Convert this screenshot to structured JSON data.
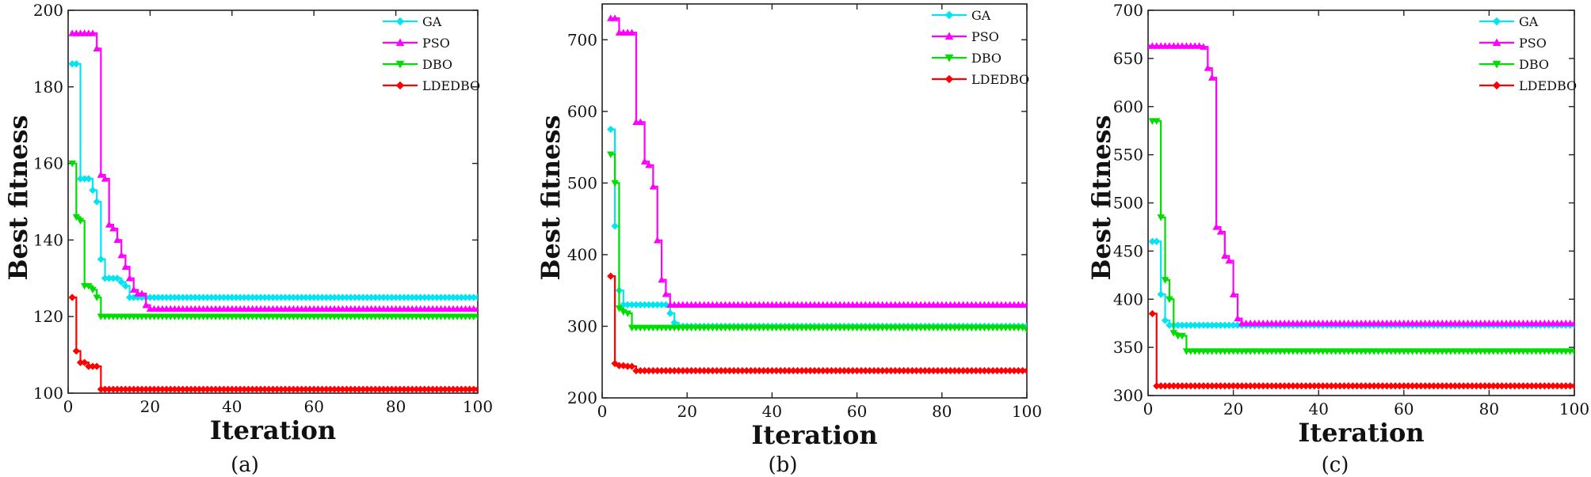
{
  "chart_data": [
    {
      "type": "line",
      "caption": "(a)",
      "xlabel": "Iteration",
      "ylabel": "Best fitness",
      "xlim": [
        0,
        100
      ],
      "ylim": [
        100,
        200
      ],
      "xticks": [
        0,
        20,
        40,
        60,
        80,
        100
      ],
      "yticks": [
        100,
        120,
        140,
        160,
        180,
        200
      ],
      "grid": false,
      "legend_position": "top-right",
      "series": [
        {
          "name": "GA",
          "color": "#00e5f0",
          "marker": "diamond",
          "points": [
            [
              1,
              186
            ],
            [
              2,
              186
            ],
            [
              3,
              156
            ],
            [
              4,
              156
            ],
            [
              5,
              156
            ],
            [
              6,
              153
            ],
            [
              7,
              150
            ],
            [
              8,
              135
            ],
            [
              9,
              130
            ],
            [
              10,
              130
            ],
            [
              11,
              130
            ],
            [
              12,
              130
            ],
            [
              13,
              129
            ],
            [
              14,
              128
            ],
            [
              15,
              125
            ],
            [
              100,
              125
            ]
          ]
        },
        {
          "name": "PSO",
          "color": "#ff00ff",
          "marker": "triangle-up",
          "points": [
            [
              1,
              194
            ],
            [
              5,
              194
            ],
            [
              6,
              194
            ],
            [
              7,
              190
            ],
            [
              8,
              157
            ],
            [
              9,
              156
            ],
            [
              10,
              144
            ],
            [
              11,
              143
            ],
            [
              12,
              140
            ],
            [
              13,
              136
            ],
            [
              14,
              133
            ],
            [
              15,
              130
            ],
            [
              16,
              127
            ],
            [
              17,
              126
            ],
            [
              18,
              126
            ],
            [
              19,
              123
            ],
            [
              20,
              122
            ],
            [
              100,
              122
            ]
          ]
        },
        {
          "name": "DBO",
          "color": "#00dd00",
          "marker": "triangle-down",
          "points": [
            [
              1,
              160
            ],
            [
              2,
              146
            ],
            [
              3,
              145
            ],
            [
              4,
              128
            ],
            [
              5,
              128
            ],
            [
              6,
              127
            ],
            [
              7,
              125
            ],
            [
              8,
              120
            ],
            [
              100,
              120
            ]
          ]
        },
        {
          "name": "LDEDBO",
          "color": "#ff0000",
          "marker": "diamond",
          "points": [
            [
              1,
              125
            ],
            [
              2,
              111
            ],
            [
              3,
              108
            ],
            [
              4,
              108
            ],
            [
              5,
              107
            ],
            [
              6,
              107
            ],
            [
              7,
              107
            ],
            [
              8,
              101
            ],
            [
              100,
              101
            ]
          ]
        }
      ]
    },
    {
      "type": "line",
      "caption": "(b)",
      "xlabel": "Iteration",
      "ylabel": "Best fitness",
      "xlim": [
        0,
        100
      ],
      "ylim": [
        200,
        750
      ],
      "xticks": [
        0,
        20,
        40,
        60,
        80,
        100
      ],
      "yticks": [
        200,
        300,
        400,
        500,
        600,
        700
      ],
      "grid": false,
      "legend_position": "top-right",
      "series": [
        {
          "name": "GA",
          "color": "#00e5f0",
          "marker": "diamond",
          "points": [
            [
              2,
              575
            ],
            [
              3,
              440
            ],
            [
              4,
              350
            ],
            [
              5,
              330
            ],
            [
              6,
              330
            ],
            [
              15,
              330
            ],
            [
              16,
              318
            ],
            [
              17,
              305
            ],
            [
              18,
              300
            ],
            [
              100,
              300
            ]
          ]
        },
        {
          "name": "PSO",
          "color": "#ff00ff",
          "marker": "triangle-up",
          "points": [
            [
              2,
              730
            ],
            [
              3,
              730
            ],
            [
              4,
              710
            ],
            [
              5,
              710
            ],
            [
              7,
              710
            ],
            [
              8,
              585
            ],
            [
              9,
              585
            ],
            [
              10,
              530
            ],
            [
              11,
              525
            ],
            [
              12,
              495
            ],
            [
              13,
              420
            ],
            [
              14,
              365
            ],
            [
              15,
              345
            ],
            [
              16,
              330
            ],
            [
              100,
              330
            ]
          ]
        },
        {
          "name": "DBO",
          "color": "#00dd00",
          "marker": "triangle-down",
          "points": [
            [
              2,
              540
            ],
            [
              3,
              500
            ],
            [
              4,
              325
            ],
            [
              5,
              320
            ],
            [
              6,
              318
            ],
            [
              7,
              298
            ],
            [
              100,
              295
            ]
          ]
        },
        {
          "name": "LDEDBO",
          "color": "#ff0000",
          "marker": "diamond",
          "points": [
            [
              2,
              370
            ],
            [
              3,
              248
            ],
            [
              4,
              245
            ],
            [
              5,
              245
            ],
            [
              6,
              244
            ],
            [
              7,
              244
            ],
            [
              8,
              238
            ],
            [
              100,
              238
            ]
          ]
        }
      ]
    },
    {
      "type": "line",
      "caption": "(c)",
      "xlabel": "Iteration",
      "ylabel": "Best fitness",
      "xlim": [
        0,
        100
      ],
      "ylim": [
        300,
        700
      ],
      "xticks": [
        0,
        20,
        40,
        60,
        80,
        100
      ],
      "yticks": [
        300,
        350,
        400,
        450,
        500,
        550,
        600,
        650,
        700
      ],
      "grid": false,
      "legend_position": "top-right",
      "series": [
        {
          "name": "GA",
          "color": "#00e5f0",
          "marker": "diamond",
          "points": [
            [
              1,
              460
            ],
            [
              2,
              460
            ],
            [
              3,
              405
            ],
            [
              4,
              378
            ],
            [
              5,
              373
            ],
            [
              100,
              373
            ]
          ]
        },
        {
          "name": "PSO",
          "color": "#ff00ff",
          "marker": "triangle-up",
          "points": [
            [
              0,
              663
            ],
            [
              12,
              663
            ],
            [
              13,
              662
            ],
            [
              14,
              640
            ],
            [
              15,
              630
            ],
            [
              16,
              475
            ],
            [
              17,
              470
            ],
            [
              18,
              445
            ],
            [
              19,
              440
            ],
            [
              20,
              405
            ],
            [
              21,
              380
            ],
            [
              22,
              375
            ],
            [
              100,
              375
            ]
          ]
        },
        {
          "name": "DBO",
          "color": "#00dd00",
          "marker": "triangle-down",
          "points": [
            [
              1,
              585
            ],
            [
              2,
              585
            ],
            [
              3,
              485
            ],
            [
              4,
              420
            ],
            [
              5,
              400
            ],
            [
              6,
              365
            ],
            [
              7,
              362
            ],
            [
              8,
              362
            ],
            [
              9,
              346
            ],
            [
              100,
              345
            ]
          ]
        },
        {
          "name": "LDEDBO",
          "color": "#ff0000",
          "marker": "diamond",
          "points": [
            [
              1,
              385
            ],
            [
              2,
              310
            ],
            [
              100,
              310
            ]
          ]
        }
      ]
    }
  ]
}
